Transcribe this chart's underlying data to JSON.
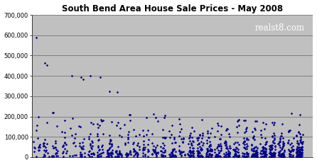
{
  "title": "South Bend Area House Sale Prices - May 2008",
  "watermark": "realst8.com",
  "ylim": [
    0,
    700000
  ],
  "yticks": [
    0,
    100000,
    200000,
    300000,
    400000,
    500000,
    600000,
    700000
  ],
  "plot_bg": "#c0c0c0",
  "fig_bg": "#ffffff",
  "dot_color": "#00008B",
  "grid_color": "#808080",
  "watermark_color": "#ffffff"
}
